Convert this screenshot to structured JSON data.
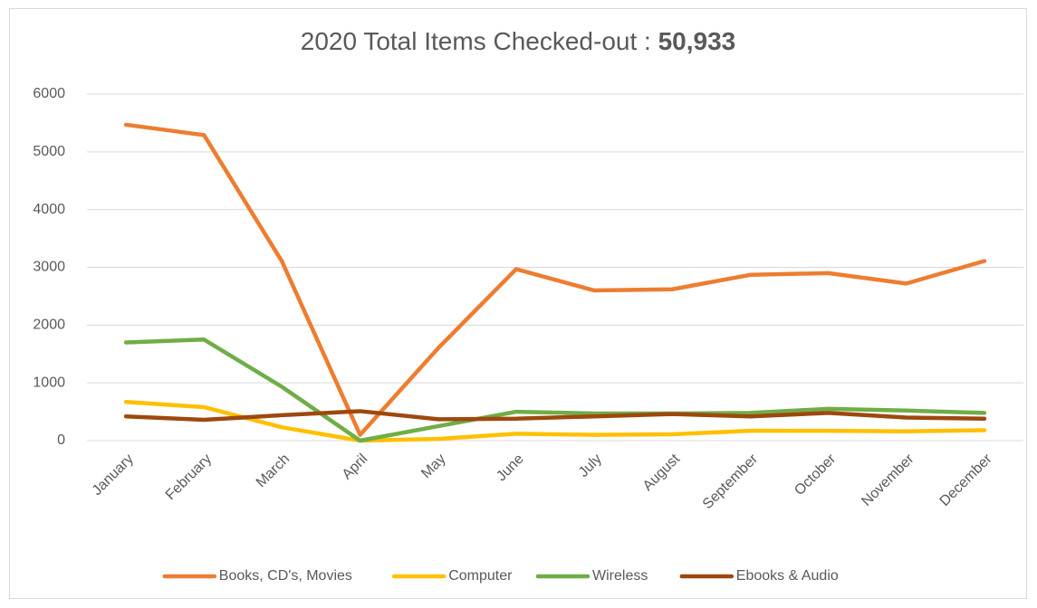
{
  "chart_data": {
    "type": "line",
    "title": "2020 Total Items Checked-out :",
    "title_total": "50,933",
    "categories": [
      "January",
      "February",
      "March",
      "April",
      "May",
      "June",
      "July",
      "August",
      "September",
      "October",
      "November",
      "December"
    ],
    "series": [
      {
        "name": "Books, CD's, Movies",
        "color": "#ed7d31",
        "values": [
          5470,
          5290,
          3100,
          100,
          1600,
          2970,
          2600,
          2620,
          2870,
          2900,
          2720,
          3110
        ]
      },
      {
        "name": "Computer",
        "color": "#ffc000",
        "values": [
          670,
          580,
          230,
          0,
          30,
          120,
          100,
          110,
          170,
          170,
          160,
          180
        ]
      },
      {
        "name": "Wireless",
        "color": "#70ad47",
        "values": [
          1700,
          1750,
          930,
          0,
          250,
          500,
          470,
          470,
          480,
          550,
          520,
          480
        ]
      },
      {
        "name": "Ebooks & Audio",
        "color": "#9e480e",
        "values": [
          420,
          360,
          440,
          510,
          370,
          380,
          420,
          460,
          420,
          480,
          400,
          380
        ]
      }
    ],
    "ylim": [
      0,
      6000
    ],
    "yticks": [
      0,
      1000,
      2000,
      3000,
      4000,
      5000,
      6000
    ],
    "grid": true,
    "legend": "bottom"
  }
}
